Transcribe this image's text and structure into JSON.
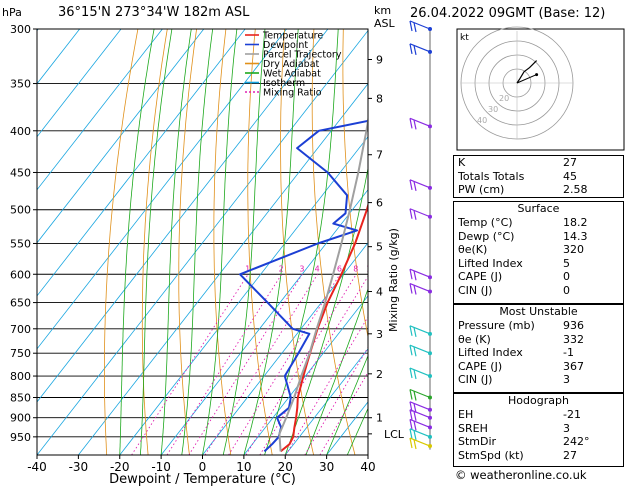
{
  "header": {
    "hpa_unit": "hPa",
    "location": "36°15'N  273°34'W  182m  ASL",
    "km_unit": "km",
    "asl_unit": "ASL",
    "datetime": "26.04.2022  09GMT  (Base: 12)"
  },
  "legend": [
    "Temperature",
    "Dewpoint",
    "Parcel Trajectory",
    "Dry Adiabat",
    "Wet Adiabat",
    "Isotherm",
    "Mixing Ratio"
  ],
  "colors": {
    "temperature": "#e8231d",
    "dewpoint": "#1c3fd4",
    "parcel": "#a0a0a0",
    "dry_adiabat": "#e0901a",
    "wet_adiabat": "#1da81d",
    "isotherm": "#19a6e0",
    "mixing_ratio": "#e020b0",
    "wind": "#8a2be2"
  },
  "chart_data": {
    "type": "line",
    "title": "Skew-T log-P diagram",
    "xlabel": "Dewpoint / Temperature (°C)",
    "ylabel_left": "hPa",
    "ylabel_right": "Mixing Ratio (g/kg)",
    "x_ticks": [
      -40,
      -30,
      -20,
      -10,
      0,
      10,
      20,
      30,
      40
    ],
    "pressure_levels": [
      300,
      350,
      400,
      450,
      500,
      550,
      600,
      650,
      700,
      750,
      800,
      850,
      900,
      950
    ],
    "p_range": [
      300,
      1000
    ],
    "km_ticks": [
      {
        "label": "9",
        "p": 327
      },
      {
        "label": "8",
        "p": 365
      },
      {
        "label": "7",
        "p": 428
      },
      {
        "label": "6",
        "p": 490
      },
      {
        "label": "5",
        "p": 555
      },
      {
        "label": "4",
        "p": 630
      },
      {
        "label": "3",
        "p": 710
      },
      {
        "label": "2",
        "p": 795
      },
      {
        "label": "1",
        "p": 900
      }
    ],
    "lcl": {
      "label": "LCL",
      "p": 942
    },
    "mixing_ratio_labels": [
      "1",
      "2",
      "3",
      "4",
      "6",
      "8",
      "10",
      "15",
      "20",
      "25"
    ],
    "mixing_ratio_values": [
      1,
      2,
      3,
      4,
      6,
      8,
      10,
      15,
      20,
      25
    ],
    "series": [
      {
        "name": "Temperature",
        "points": [
          [
            990,
            18.2
          ],
          [
            970,
            19
          ],
          [
            950,
            18.5
          ],
          [
            925,
            17
          ],
          [
            900,
            15.6
          ],
          [
            875,
            14
          ],
          [
            850,
            12.2
          ],
          [
            800,
            9.5
          ],
          [
            750,
            6.8
          ],
          [
            700,
            4
          ],
          [
            650,
            1.5
          ],
          [
            600,
            -0.5
          ],
          [
            550,
            -3
          ],
          [
            500,
            -6.5
          ],
          [
            450,
            -11
          ],
          [
            400,
            -16.5
          ],
          [
            350,
            -24
          ],
          [
            300,
            -31
          ]
        ]
      },
      {
        "name": "Dewpoint",
        "points": [
          [
            990,
            14.3
          ],
          [
            970,
            14.8
          ],
          [
            950,
            15
          ],
          [
            925,
            13.8
          ],
          [
            900,
            11
          ],
          [
            875,
            12
          ],
          [
            850,
            10.5
          ],
          [
            800,
            5
          ],
          [
            750,
            4
          ],
          [
            710,
            3
          ],
          [
            700,
            -2
          ],
          [
            650,
            -13
          ],
          [
            600,
            -25
          ],
          [
            550,
            -12
          ],
          [
            530,
            -5
          ],
          [
            520,
            -12
          ],
          [
            505,
            -11
          ],
          [
            480,
            -14
          ],
          [
            450,
            -23
          ],
          [
            420,
            -35
          ],
          [
            400,
            -33
          ],
          [
            370,
            -5
          ],
          [
            340,
            -25
          ],
          [
            310,
            -10
          ],
          [
            300,
            -12
          ]
        ]
      },
      {
        "name": "Parcel Trajectory",
        "points": [
          [
            990,
            18.2
          ],
          [
            942,
            14.6
          ],
          [
            900,
            13.2
          ],
          [
            850,
            11.3
          ],
          [
            800,
            9
          ],
          [
            750,
            6.7
          ],
          [
            700,
            3.8
          ],
          [
            650,
            0.9
          ],
          [
            600,
            -2.5
          ],
          [
            550,
            -6.3
          ],
          [
            500,
            -10.6
          ],
          [
            450,
            -15.6
          ],
          [
            400,
            -21.5
          ],
          [
            350,
            -28.5
          ],
          [
            300,
            -37
          ]
        ]
      }
    ],
    "wind_barbs": [
      {
        "p": 300,
        "color": "blue"
      },
      {
        "p": 320,
        "color": "blue"
      },
      {
        "p": 395,
        "color": "purple"
      },
      {
        "p": 470,
        "color": "purple"
      },
      {
        "p": 510,
        "color": "purple"
      },
      {
        "p": 605,
        "color": "purple"
      },
      {
        "p": 630,
        "color": "purple"
      },
      {
        "p": 710,
        "color": "cyan"
      },
      {
        "p": 750,
        "color": "cyan"
      },
      {
        "p": 800,
        "color": "cyan"
      },
      {
        "p": 850,
        "color": "green"
      },
      {
        "p": 880,
        "color": "purple"
      },
      {
        "p": 900,
        "color": "purple"
      },
      {
        "p": 925,
        "color": "purple"
      },
      {
        "p": 950,
        "color": "cyan"
      },
      {
        "p": 975,
        "color": "yellow"
      }
    ],
    "hodograph": {
      "unit_label": "kt",
      "ring_labels": [
        "20",
        "30",
        "40"
      ],
      "points": [
        [
          0,
          0
        ],
        [
          2,
          3
        ],
        [
          5,
          8
        ],
        [
          9,
          11
        ],
        [
          14,
          16
        ]
      ],
      "storm_motion": {
        "dir": 242,
        "speed": 27
      }
    }
  },
  "indices": [
    {
      "label": "K",
      "value": "27"
    },
    {
      "label": "Totals Totals",
      "value": "45"
    },
    {
      "label": "PW (cm)",
      "value": "2.58"
    }
  ],
  "surface": {
    "title": "Surface",
    "rows": [
      {
        "label": "Temp (°C)",
        "value": "18.2"
      },
      {
        "label": "Dewp (°C)",
        "value": "14.3"
      },
      {
        "label": "θe(K)",
        "value": "320"
      },
      {
        "label": "Lifted Index",
        "value": "5"
      },
      {
        "label": "CAPE (J)",
        "value": "0"
      },
      {
        "label": "CIN (J)",
        "value": "0"
      }
    ]
  },
  "most_unstable": {
    "title": "Most Unstable",
    "rows": [
      {
        "label": "Pressure (mb)",
        "value": "936"
      },
      {
        "label": "θe (K)",
        "value": "332"
      },
      {
        "label": "Lifted Index",
        "value": "-1"
      },
      {
        "label": "CAPE (J)",
        "value": "367"
      },
      {
        "label": "CIN (J)",
        "value": "3"
      }
    ]
  },
  "hodograph_table": {
    "title": "Hodograph",
    "rows": [
      {
        "label": "EH",
        "value": "-21"
      },
      {
        "label": "SREH",
        "value": "3"
      },
      {
        "label": "StmDir",
        "value": "242°"
      },
      {
        "label": "StmSpd (kt)",
        "value": "27"
      }
    ]
  },
  "credit": "© weatheronline.co.uk"
}
